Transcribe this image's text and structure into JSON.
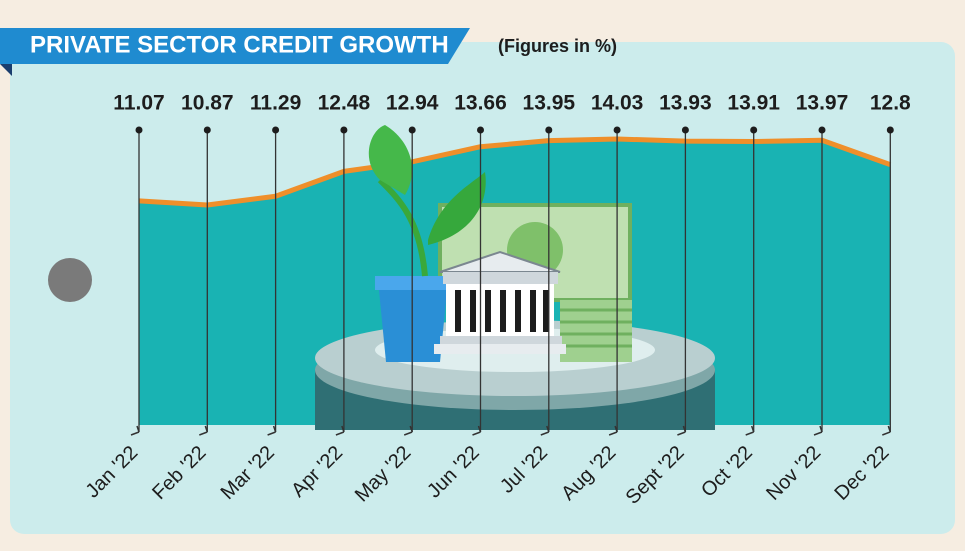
{
  "chart_data": {
    "type": "line",
    "title": "PRIVATE SECTOR CREDIT GROWTH",
    "subtitle": "(Figures in %)",
    "categories": [
      "Jan '22",
      "Feb '22",
      "Mar '22",
      "Apr '22",
      "May '22",
      "Jun '22",
      "Jul '22",
      "Aug '22",
      "Sept '22",
      "Oct '22",
      "Nov '22",
      "Dec '22"
    ],
    "values": [
      11.07,
      10.87,
      11.29,
      12.48,
      12.94,
      13.66,
      13.95,
      14.03,
      13.93,
      13.91,
      13.97,
      12.8
    ],
    "color": "#ef8f2a",
    "area_color": "#19b3b3"
  }
}
